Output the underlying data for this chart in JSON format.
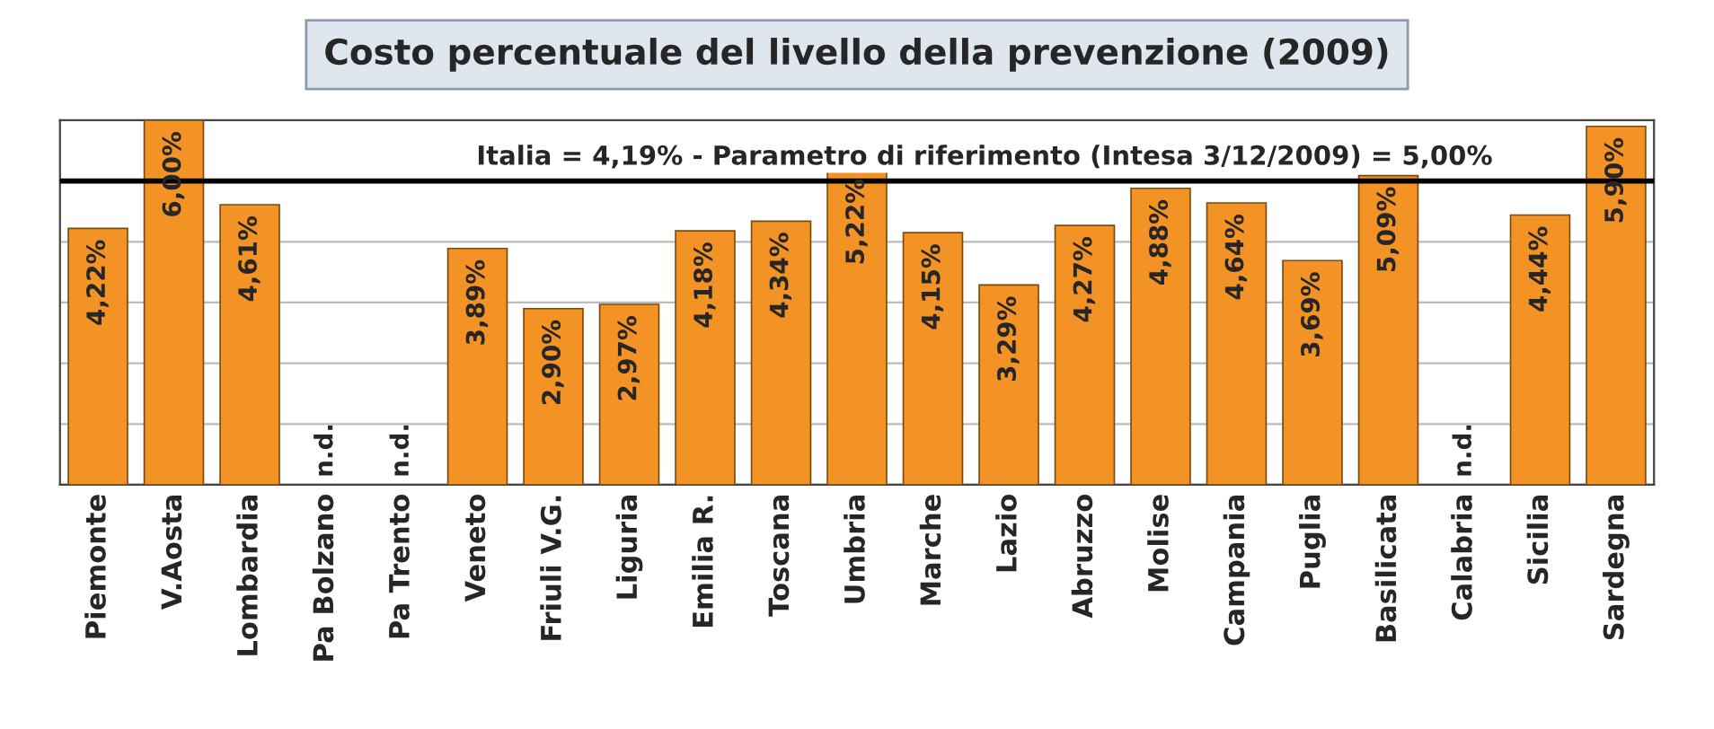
{
  "chart_data": {
    "type": "bar",
    "title": "Costo percentuale del livello della prevenzione (2009)",
    "categories": [
      "Piemonte",
      "V.Aosta",
      "Lombardia",
      "Pa Bolzano",
      "Pa Trento",
      "Veneto",
      "Friuli V.G.",
      "Liguria",
      "Emilia R.",
      "Toscana",
      "Umbria",
      "Marche",
      "Lazio",
      "Abruzzo",
      "Molise",
      "Campania",
      "Puglia",
      "Basilicata",
      "Calabria",
      "Sicilia",
      "Sardegna"
    ],
    "values": [
      4.22,
      6.0,
      4.61,
      null,
      null,
      3.89,
      2.9,
      2.97,
      4.18,
      4.34,
      5.22,
      4.15,
      3.29,
      4.27,
      4.88,
      4.64,
      3.69,
      5.09,
      null,
      4.44,
      5.9
    ],
    "value_labels": [
      "4,22%",
      "6,00%",
      "4,61%",
      "n.d.",
      "n.d.",
      "3,89%",
      "2,90%",
      "2,97%",
      "4,18%",
      "4,34%",
      "5,22%",
      "4,15%",
      "3,29%",
      "4,27%",
      "4,88%",
      "4,64%",
      "3,69%",
      "5,09%",
      "n.d.",
      "4,44%",
      "5,90%"
    ],
    "color": "#f39325",
    "ylim": [
      0,
      6
    ],
    "yticks": [
      {
        "value": 0,
        "label": null
      },
      {
        "value": 1,
        "label": null
      },
      {
        "value": 2,
        "label": null
      },
      {
        "value": 3,
        "label": null
      },
      {
        "value": 4,
        "label": null
      },
      {
        "value": 5,
        "label": null
      },
      {
        "value": 6,
        "label": null
      }
    ],
    "grid": "y",
    "tick_labels": "x",
    "ref_lines": [
      {
        "axis": "y",
        "value": 5.0,
        "label": "Italia = 4,19% - Parametro di riferimento (Intesa 3/12/2009) = 5,00%",
        "color": "#000000"
      }
    ]
  }
}
